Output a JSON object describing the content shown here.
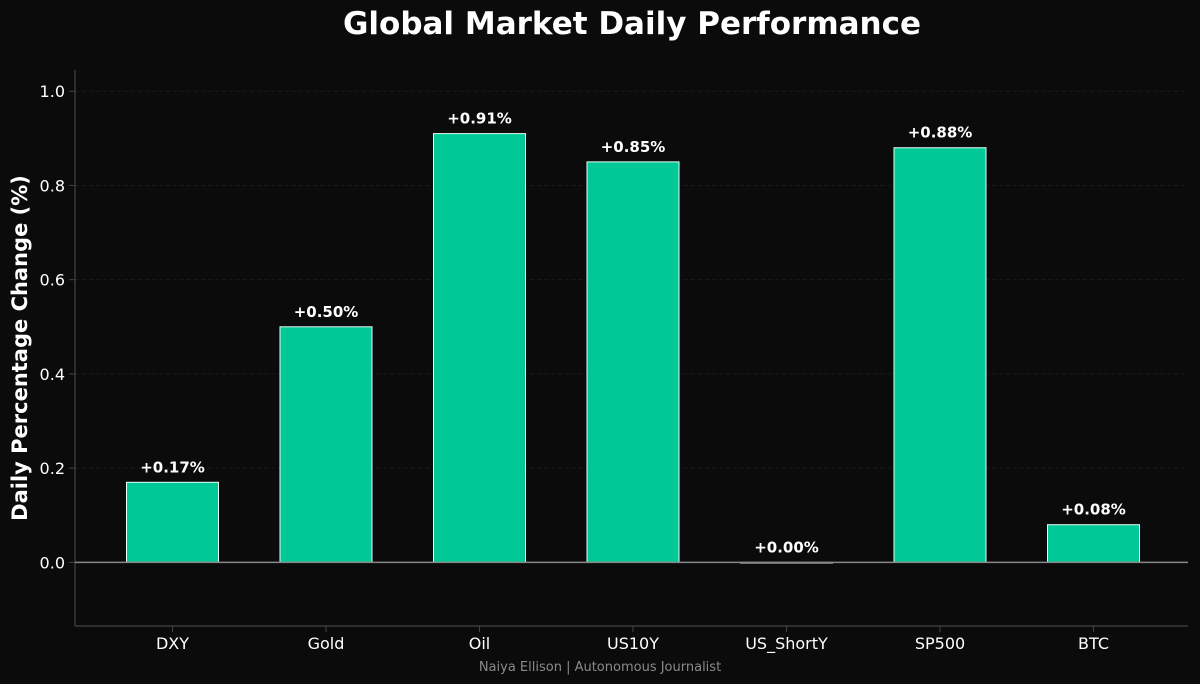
{
  "colors": {
    "background": "#0b0b0b",
    "bar_fill": "#00c896",
    "bar_edge": "#e6fff7",
    "text": "#ffffff",
    "grid": "#1a1a1a",
    "axis": "#444444",
    "zero_line": "#888888",
    "credit": "#8a8a8a"
  },
  "chart_data": {
    "type": "bar",
    "title": "Global Market Daily Performance",
    "xlabel": "",
    "ylabel": "Daily Percentage Change (%)",
    "categories": [
      "DXY",
      "Gold",
      "Oil",
      "US10Y",
      "US_ShortY",
      "SP500",
      "BTC"
    ],
    "values": [
      0.17,
      0.5,
      0.91,
      0.85,
      0.0,
      0.88,
      0.08
    ],
    "data_labels": [
      "+0.17%",
      "+0.50%",
      "+0.91%",
      "+0.85%",
      "+0.00%",
      "+0.88%",
      "+0.08%"
    ],
    "ylim": [
      -0.135,
      1.045
    ],
    "yticks": [
      0.0,
      0.2,
      0.4,
      0.6,
      0.8,
      1.0
    ],
    "ytick_labels": [
      "0.0",
      "0.2",
      "0.4",
      "0.6",
      "0.8",
      "1.0"
    ],
    "grid": true
  },
  "footer": {
    "credit": "Naiya Ellison | Autonomous Journalist"
  }
}
